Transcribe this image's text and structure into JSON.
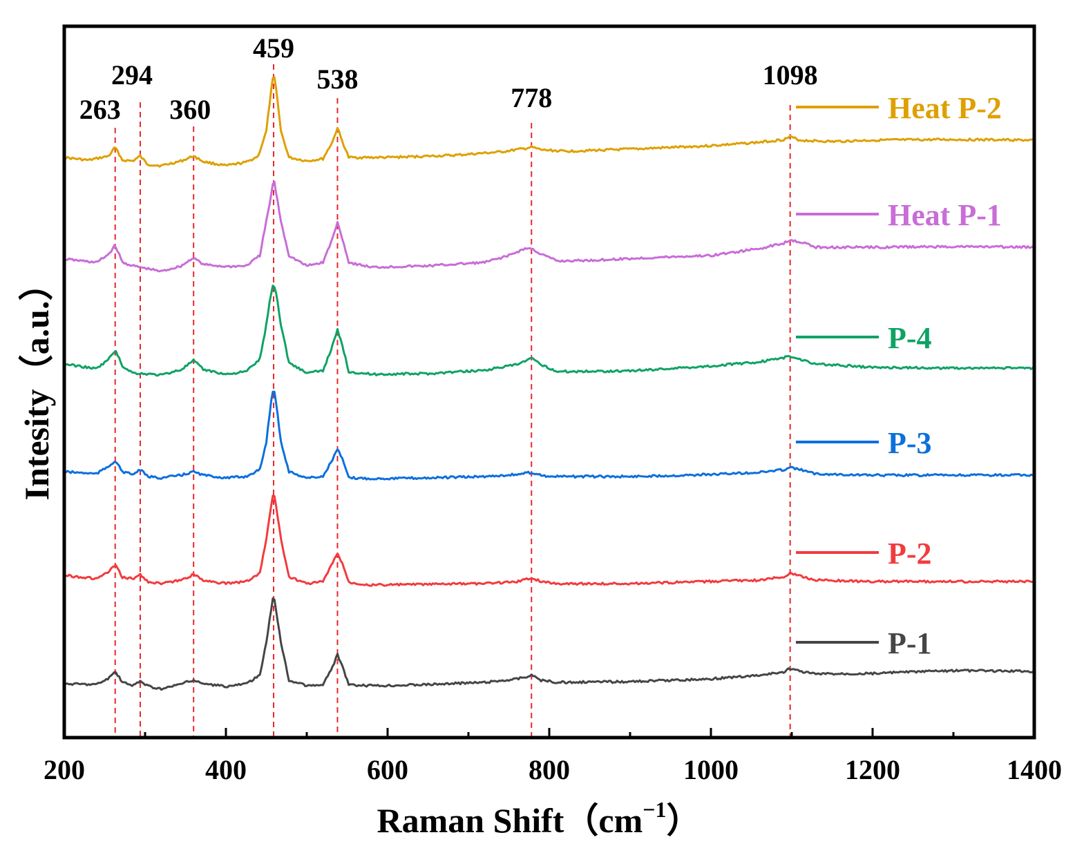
{
  "chart_data": {
    "type": "line",
    "xlabel_main": "Raman Shift",
    "xlabel_unit_open": "（cm",
    "xlabel_unit_sup": "−1",
    "xlabel_unit_close": "）",
    "ylabel": "Intesity（a.u.）",
    "xlim": [
      200,
      1400
    ],
    "xticks": [
      200,
      400,
      600,
      800,
      1000,
      1200,
      1400
    ],
    "x_minor_step": 100,
    "y_ticks_shown": false,
    "grid": false,
    "legend_placement": "right, beside each curve",
    "reference_line_color": "#e8272b",
    "peaks": [
      {
        "x": 263,
        "label": "263"
      },
      {
        "x": 294,
        "label": "294"
      },
      {
        "x": 360,
        "label": "360"
      },
      {
        "x": 459,
        "label": "459"
      },
      {
        "x": 538,
        "label": "538"
      },
      {
        "x": 778,
        "label": "778"
      },
      {
        "x": 1098,
        "label": "1098"
      }
    ],
    "series": [
      {
        "name": "Heat P-2",
        "color": "#dea000",
        "points": [
          [
            200,
            228
          ],
          [
            230,
            232
          ],
          [
            255,
            226
          ],
          [
            263,
            213
          ],
          [
            272,
            232
          ],
          [
            285,
            233
          ],
          [
            294,
            226
          ],
          [
            303,
            238
          ],
          [
            320,
            240
          ],
          [
            345,
            233
          ],
          [
            360,
            226
          ],
          [
            372,
            234
          ],
          [
            400,
            240
          ],
          [
            425,
            235
          ],
          [
            440,
            226
          ],
          [
            450,
            190
          ],
          [
            455,
            140
          ],
          [
            459,
            106
          ],
          [
            463,
            135
          ],
          [
            468,
            190
          ],
          [
            478,
            228
          ],
          [
            500,
            233
          ],
          [
            520,
            230
          ],
          [
            532,
            205
          ],
          [
            538,
            185
          ],
          [
            544,
            205
          ],
          [
            552,
            228
          ],
          [
            600,
            228
          ],
          [
            680,
            225
          ],
          [
            740,
            220
          ],
          [
            770,
            215
          ],
          [
            778,
            213
          ],
          [
            790,
            217
          ],
          [
            820,
            219
          ],
          [
            900,
            216
          ],
          [
            1000,
            211
          ],
          [
            1060,
            206
          ],
          [
            1090,
            202
          ],
          [
            1098,
            198
          ],
          [
            1110,
            203
          ],
          [
            1150,
            205
          ],
          [
            1200,
            203
          ],
          [
            1300,
            202
          ],
          [
            1400,
            203
          ]
        ]
      },
      {
        "name": "Heat P-1",
        "color": "#c86dd7",
        "points": [
          [
            200,
            375
          ],
          [
            240,
            380
          ],
          [
            255,
            368
          ],
          [
            263,
            355
          ],
          [
            272,
            380
          ],
          [
            285,
            385
          ],
          [
            320,
            393
          ],
          [
            345,
            385
          ],
          [
            360,
            373
          ],
          [
            372,
            383
          ],
          [
            400,
            386
          ],
          [
            425,
            385
          ],
          [
            442,
            370
          ],
          [
            450,
            320
          ],
          [
            455,
            290
          ],
          [
            459,
            258
          ],
          [
            463,
            285
          ],
          [
            468,
            320
          ],
          [
            478,
            370
          ],
          [
            500,
            385
          ],
          [
            520,
            380
          ],
          [
            532,
            345
          ],
          [
            538,
            322
          ],
          [
            544,
            345
          ],
          [
            552,
            380
          ],
          [
            580,
            387
          ],
          [
            650,
            385
          ],
          [
            720,
            380
          ],
          [
            750,
            370
          ],
          [
            770,
            360
          ],
          [
            778,
            360
          ],
          [
            790,
            368
          ],
          [
            810,
            378
          ],
          [
            850,
            377
          ],
          [
            950,
            372
          ],
          [
            1000,
            370
          ],
          [
            1060,
            360
          ],
          [
            1090,
            352
          ],
          [
            1098,
            347
          ],
          [
            1110,
            350
          ],
          [
            1130,
            358
          ],
          [
            1200,
            358
          ],
          [
            1300,
            357
          ],
          [
            1400,
            358
          ]
        ]
      },
      {
        "name": "P-4",
        "color": "#0fa265",
        "points": [
          [
            200,
            527
          ],
          [
            240,
            534
          ],
          [
            255,
            520
          ],
          [
            263,
            507
          ],
          [
            272,
            530
          ],
          [
            285,
            540
          ],
          [
            320,
            543
          ],
          [
            345,
            535
          ],
          [
            360,
            522
          ],
          [
            372,
            535
          ],
          [
            400,
            542
          ],
          [
            425,
            538
          ],
          [
            442,
            520
          ],
          [
            450,
            470
          ],
          [
            455,
            430
          ],
          [
            459,
            409
          ],
          [
            463,
            430
          ],
          [
            468,
            470
          ],
          [
            478,
            525
          ],
          [
            500,
            540
          ],
          [
            520,
            537
          ],
          [
            532,
            500
          ],
          [
            538,
            478
          ],
          [
            544,
            500
          ],
          [
            552,
            538
          ],
          [
            580,
            542
          ],
          [
            650,
            541
          ],
          [
            720,
            536
          ],
          [
            760,
            528
          ],
          [
            778,
            519
          ],
          [
            790,
            528
          ],
          [
            810,
            538
          ],
          [
            900,
            537
          ],
          [
            1000,
            530
          ],
          [
            1060,
            524
          ],
          [
            1090,
            518
          ],
          [
            1098,
            516
          ],
          [
            1110,
            520
          ],
          [
            1130,
            527
          ],
          [
            1200,
            532
          ],
          [
            1300,
            533
          ],
          [
            1400,
            533
          ]
        ]
      },
      {
        "name": "P-3",
        "color": "#0c6fdc",
        "points": [
          [
            200,
            683
          ],
          [
            240,
            686
          ],
          [
            255,
            675
          ],
          [
            263,
            667
          ],
          [
            272,
            683
          ],
          [
            285,
            687
          ],
          [
            294,
            680
          ],
          [
            303,
            690
          ],
          [
            320,
            692
          ],
          [
            345,
            688
          ],
          [
            360,
            683
          ],
          [
            372,
            688
          ],
          [
            400,
            692
          ],
          [
            425,
            690
          ],
          [
            442,
            680
          ],
          [
            450,
            640
          ],
          [
            455,
            590
          ],
          [
            459,
            558
          ],
          [
            463,
            590
          ],
          [
            468,
            640
          ],
          [
            478,
            683
          ],
          [
            500,
            692
          ],
          [
            520,
            690
          ],
          [
            532,
            665
          ],
          [
            538,
            650
          ],
          [
            544,
            665
          ],
          [
            552,
            692
          ],
          [
            580,
            693
          ],
          [
            650,
            692
          ],
          [
            720,
            690
          ],
          [
            760,
            687
          ],
          [
            778,
            684
          ],
          [
            790,
            688
          ],
          [
            800,
            690
          ],
          [
            900,
            690
          ],
          [
            1000,
            687
          ],
          [
            1060,
            684
          ],
          [
            1090,
            680
          ],
          [
            1098,
            677
          ],
          [
            1110,
            680
          ],
          [
            1130,
            686
          ],
          [
            1200,
            688
          ],
          [
            1300,
            688
          ],
          [
            1400,
            688
          ]
        ]
      },
      {
        "name": "P-2",
        "color": "#f23b3e",
        "points": [
          [
            200,
            833
          ],
          [
            240,
            838
          ],
          [
            255,
            828
          ],
          [
            263,
            818
          ],
          [
            272,
            836
          ],
          [
            285,
            838
          ],
          [
            294,
            832
          ],
          [
            303,
            842
          ],
          [
            320,
            845
          ],
          [
            345,
            840
          ],
          [
            360,
            832
          ],
          [
            372,
            840
          ],
          [
            400,
            845
          ],
          [
            425,
            842
          ],
          [
            442,
            830
          ],
          [
            450,
            780
          ],
          [
            455,
            740
          ],
          [
            459,
            710
          ],
          [
            463,
            740
          ],
          [
            468,
            780
          ],
          [
            478,
            835
          ],
          [
            500,
            845
          ],
          [
            520,
            842
          ],
          [
            532,
            815
          ],
          [
            538,
            802
          ],
          [
            544,
            815
          ],
          [
            552,
            843
          ],
          [
            580,
            847
          ],
          [
            650,
            846
          ],
          [
            720,
            845
          ],
          [
            760,
            842
          ],
          [
            778,
            837
          ],
          [
            790,
            842
          ],
          [
            810,
            845
          ],
          [
            900,
            845
          ],
          [
            1000,
            842
          ],
          [
            1060,
            840
          ],
          [
            1090,
            835
          ],
          [
            1098,
            830
          ],
          [
            1110,
            834
          ],
          [
            1130,
            840
          ],
          [
            1200,
            842
          ],
          [
            1300,
            842
          ],
          [
            1400,
            842
          ]
        ]
      },
      {
        "name": "P-1",
        "color": "#454545",
        "points": [
          [
            200,
            990
          ],
          [
            240,
            991
          ],
          [
            255,
            982
          ],
          [
            263,
            972
          ],
          [
            272,
            988
          ],
          [
            285,
            993
          ],
          [
            294,
            986
          ],
          [
            303,
            993
          ],
          [
            320,
            998
          ],
          [
            345,
            990
          ],
          [
            360,
            985
          ],
          [
            372,
            990
          ],
          [
            400,
            994
          ],
          [
            425,
            990
          ],
          [
            442,
            978
          ],
          [
            450,
            930
          ],
          [
            455,
            890
          ],
          [
            459,
            860
          ],
          [
            463,
            890
          ],
          [
            468,
            930
          ],
          [
            478,
            985
          ],
          [
            500,
            993
          ],
          [
            520,
            992
          ],
          [
            532,
            965
          ],
          [
            538,
            948
          ],
          [
            544,
            965
          ],
          [
            552,
            992
          ],
          [
            580,
            993
          ],
          [
            650,
            991
          ],
          [
            720,
            988
          ],
          [
            760,
            983
          ],
          [
            778,
            978
          ],
          [
            790,
            985
          ],
          [
            810,
            988
          ],
          [
            900,
            987
          ],
          [
            1000,
            983
          ],
          [
            1060,
            978
          ],
          [
            1090,
            973
          ],
          [
            1098,
            968
          ],
          [
            1110,
            972
          ],
          [
            1130,
            976
          ],
          [
            1200,
            975
          ],
          [
            1300,
            971
          ],
          [
            1400,
            972
          ]
        ]
      }
    ]
  }
}
